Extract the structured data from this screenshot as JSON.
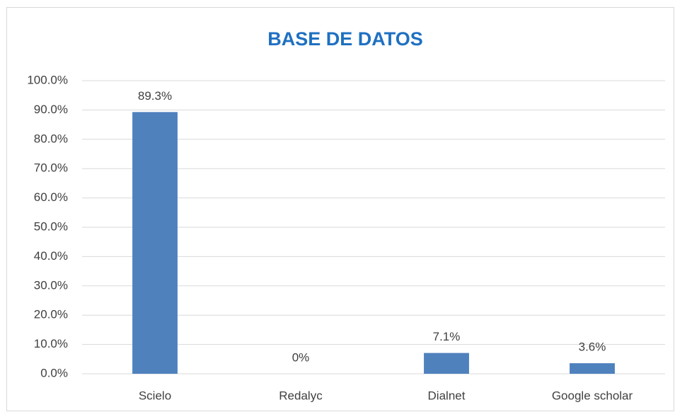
{
  "chart_data": {
    "type": "bar",
    "title": "BASE DE DATOS",
    "categories": [
      "Scielo",
      "Redalyc",
      "Dialnet",
      "Google scholar"
    ],
    "values": [
      89.3,
      0,
      7.1,
      3.6
    ],
    "value_labels": [
      "89.3%",
      "0%",
      "7.1%",
      "3.6%"
    ],
    "color": "#4f81bd",
    "ylim": [
      0,
      100
    ],
    "yticks": [
      {
        "value": 0,
        "label": "0.0%"
      },
      {
        "value": 10,
        "label": "10.0%"
      },
      {
        "value": 20,
        "label": "20.0%"
      },
      {
        "value": 30,
        "label": "30.0%"
      },
      {
        "value": 40,
        "label": "40.0%"
      },
      {
        "value": 50,
        "label": "50.0%"
      },
      {
        "value": 60,
        "label": "60.0%"
      },
      {
        "value": 70,
        "label": "70.0%"
      },
      {
        "value": 80,
        "label": "80.0%"
      },
      {
        "value": 90,
        "label": "90.0%"
      },
      {
        "value": 100,
        "label": "100.0%"
      }
    ],
    "grid": true
  }
}
